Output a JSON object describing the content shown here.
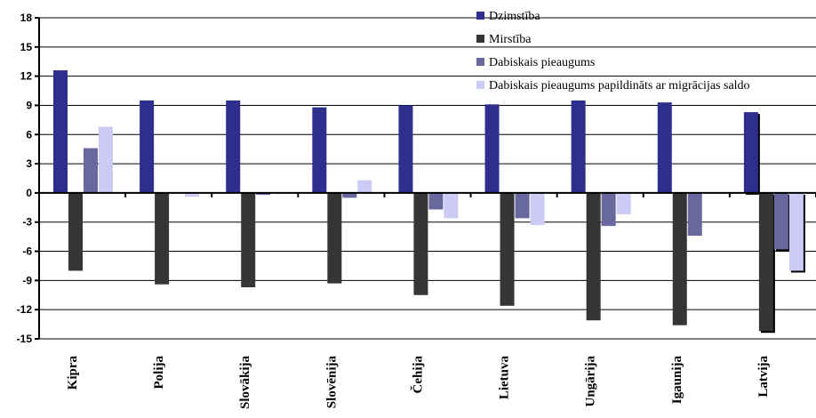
{
  "chart_data": {
    "type": "bar",
    "categories": [
      "Kipra",
      "Polija",
      "Slovākija",
      "Slovēnija",
      "Čehija",
      "Lietuva",
      "Ungārija",
      "Igaunija",
      "Latvija"
    ],
    "series": [
      {
        "name": "Dzimstība",
        "color": "#2e2e8f",
        "values": [
          12.6,
          9.5,
          9.5,
          8.8,
          9.0,
          9.1,
          9.5,
          9.3,
          8.3
        ]
      },
      {
        "name": "Mirstība",
        "color": "#353535",
        "values": [
          -8.0,
          -9.4,
          -9.7,
          -9.3,
          -10.5,
          -11.6,
          -13.1,
          -13.6,
          -14.2
        ]
      },
      {
        "name": "Dabiskais pieaugums",
        "color": "#68689e",
        "values": [
          4.6,
          0,
          -0.2,
          -0.5,
          -1.7,
          -2.6,
          -3.4,
          -4.4,
          -5.8
        ]
      },
      {
        "name": "Dabiskais pieaugums papildināts ar migrācijas saldo",
        "color": "#cbcbf5",
        "values": [
          6.8,
          -0.4,
          0,
          1.3,
          -2.6,
          -3.3,
          -2.2,
          0,
          -8.0
        ]
      }
    ],
    "ylim": [
      -15,
      18
    ],
    "yticks": [
      18,
      15,
      12,
      9,
      6,
      3,
      0,
      -3,
      -6,
      -9,
      -12,
      -15
    ],
    "grid": true,
    "legend_position": "top-right",
    "highlighted_category": "Latvija"
  }
}
